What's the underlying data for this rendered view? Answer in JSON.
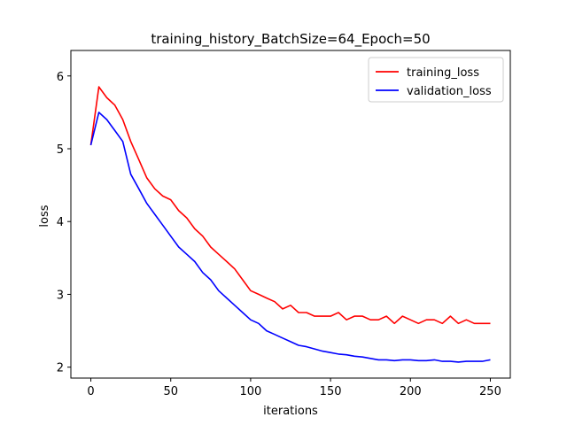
{
  "chart_data": {
    "type": "line",
    "title": "training_history_BatchSize=64_Epoch=50",
    "xlabel": "iterations",
    "ylabel": "loss",
    "xlim": [
      -12.5,
      262.5
    ],
    "ylim": [
      1.85,
      6.35
    ],
    "xticks": [
      0,
      50,
      100,
      150,
      200,
      250
    ],
    "yticks": [
      2,
      3,
      4,
      5,
      6
    ],
    "grid": false,
    "legend_position": "top-right",
    "x": [
      0,
      5,
      10,
      15,
      20,
      25,
      30,
      35,
      40,
      45,
      50,
      55,
      60,
      65,
      70,
      75,
      80,
      85,
      90,
      95,
      100,
      105,
      110,
      115,
      120,
      125,
      130,
      135,
      140,
      145,
      150,
      155,
      160,
      165,
      170,
      175,
      180,
      185,
      190,
      195,
      200,
      205,
      210,
      215,
      220,
      225,
      230,
      235,
      240,
      245,
      250
    ],
    "series": [
      {
        "name": "training_loss",
        "color": "#ff0000",
        "values": [
          5.05,
          5.85,
          5.7,
          5.6,
          5.4,
          5.1,
          4.85,
          4.6,
          4.45,
          4.35,
          4.3,
          4.15,
          4.05,
          3.9,
          3.8,
          3.65,
          3.55,
          3.45,
          3.35,
          3.2,
          3.05,
          3.0,
          2.95,
          2.9,
          2.8,
          2.85,
          2.75,
          2.75,
          2.7,
          2.7,
          2.7,
          2.75,
          2.65,
          2.7,
          2.7,
          2.65,
          2.65,
          2.7,
          2.6,
          2.7,
          2.65,
          2.6,
          2.65,
          2.65,
          2.6,
          2.7,
          2.6,
          2.65,
          2.6,
          2.6,
          2.6
        ]
      },
      {
        "name": "validation_loss",
        "color": "#0000ff",
        "values": [
          5.05,
          5.5,
          5.4,
          5.25,
          5.1,
          4.65,
          4.45,
          4.25,
          4.1,
          3.95,
          3.8,
          3.65,
          3.55,
          3.45,
          3.3,
          3.2,
          3.05,
          2.95,
          2.85,
          2.75,
          2.65,
          2.6,
          2.5,
          2.45,
          2.4,
          2.35,
          2.3,
          2.28,
          2.25,
          2.22,
          2.2,
          2.18,
          2.17,
          2.15,
          2.14,
          2.12,
          2.1,
          2.1,
          2.09,
          2.1,
          2.1,
          2.09,
          2.09,
          2.1,
          2.08,
          2.08,
          2.07,
          2.08,
          2.08,
          2.08,
          2.1
        ]
      }
    ]
  }
}
